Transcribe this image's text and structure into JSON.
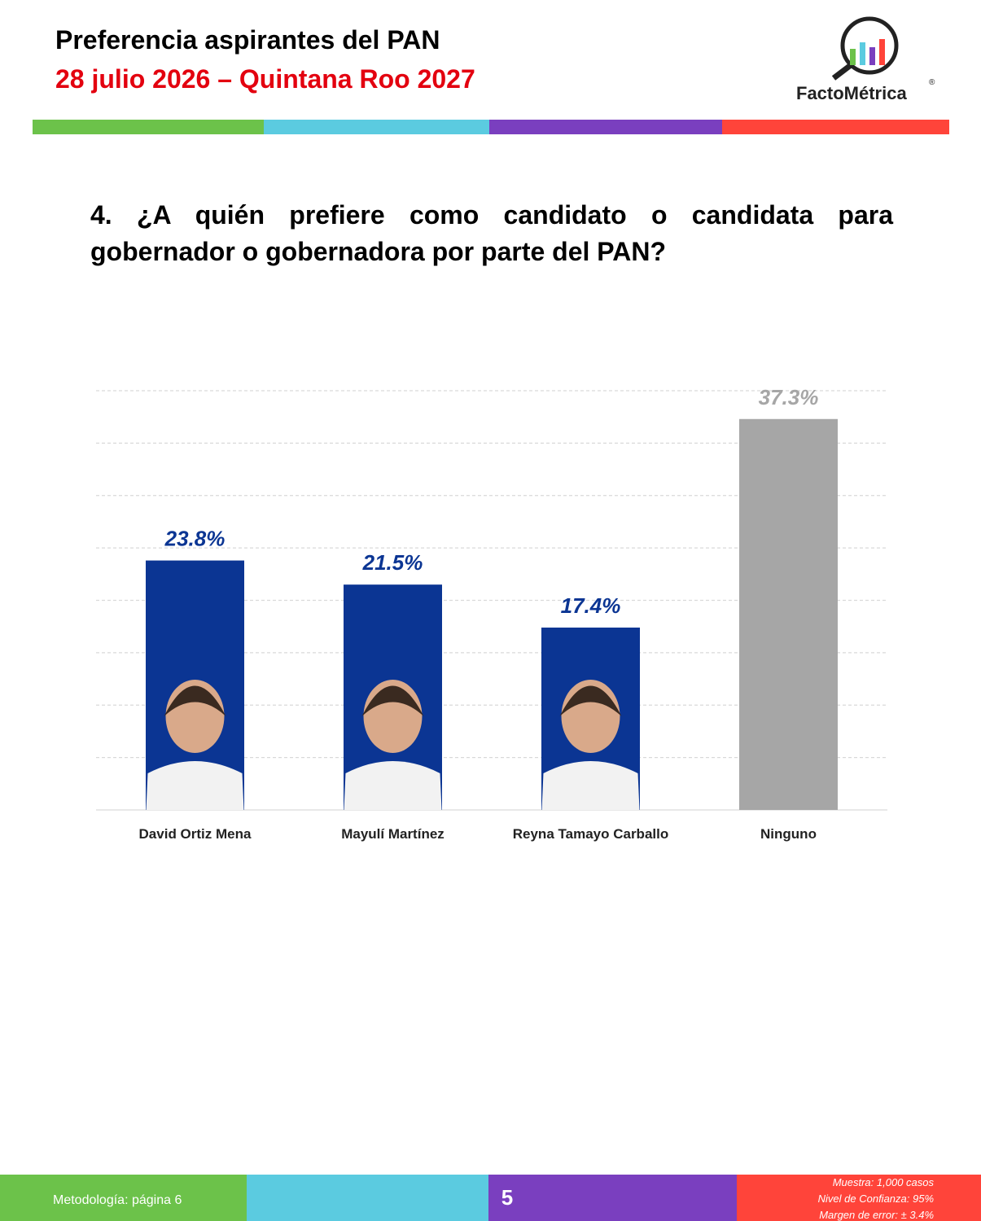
{
  "header": {
    "title": "Preferencia aspirantes del PAN",
    "subtitle": "28 julio 2026 – Quintana Roo 2027"
  },
  "logo": {
    "text": "FactoMétrica",
    "mark": "®"
  },
  "question": "4. ¿A quién prefiere como candidato o candidata para gobernador o gobernadora por parte del PAN?",
  "chart_data": {
    "type": "bar",
    "categories": [
      "David Ortiz Mena",
      "Mayulí Martínez",
      "Reyna Tamayo Carballo",
      "Ninguno"
    ],
    "values": [
      23.8,
      21.5,
      17.4,
      37.3
    ],
    "value_labels": [
      "23.8%",
      "21.5%",
      "17.4%",
      "37.3%"
    ],
    "colors": [
      "#0b3593",
      "#0b3593",
      "#0b3593",
      "#a6a6a6"
    ],
    "label_colors": [
      "#0b3593",
      "#0b3593",
      "#0b3593",
      "#a6a6a6"
    ],
    "ylim": [
      0,
      40
    ],
    "yticks": [
      0,
      5,
      10,
      15,
      20,
      25,
      30,
      35,
      40
    ],
    "grid": true
  },
  "footer": {
    "methodology": "Metodología: página 6",
    "page": 5,
    "notes": [
      "Muestra:  1,000 casos",
      "Nivel de Confianza: 95%",
      "Margen de error: ± 3.4%"
    ]
  }
}
